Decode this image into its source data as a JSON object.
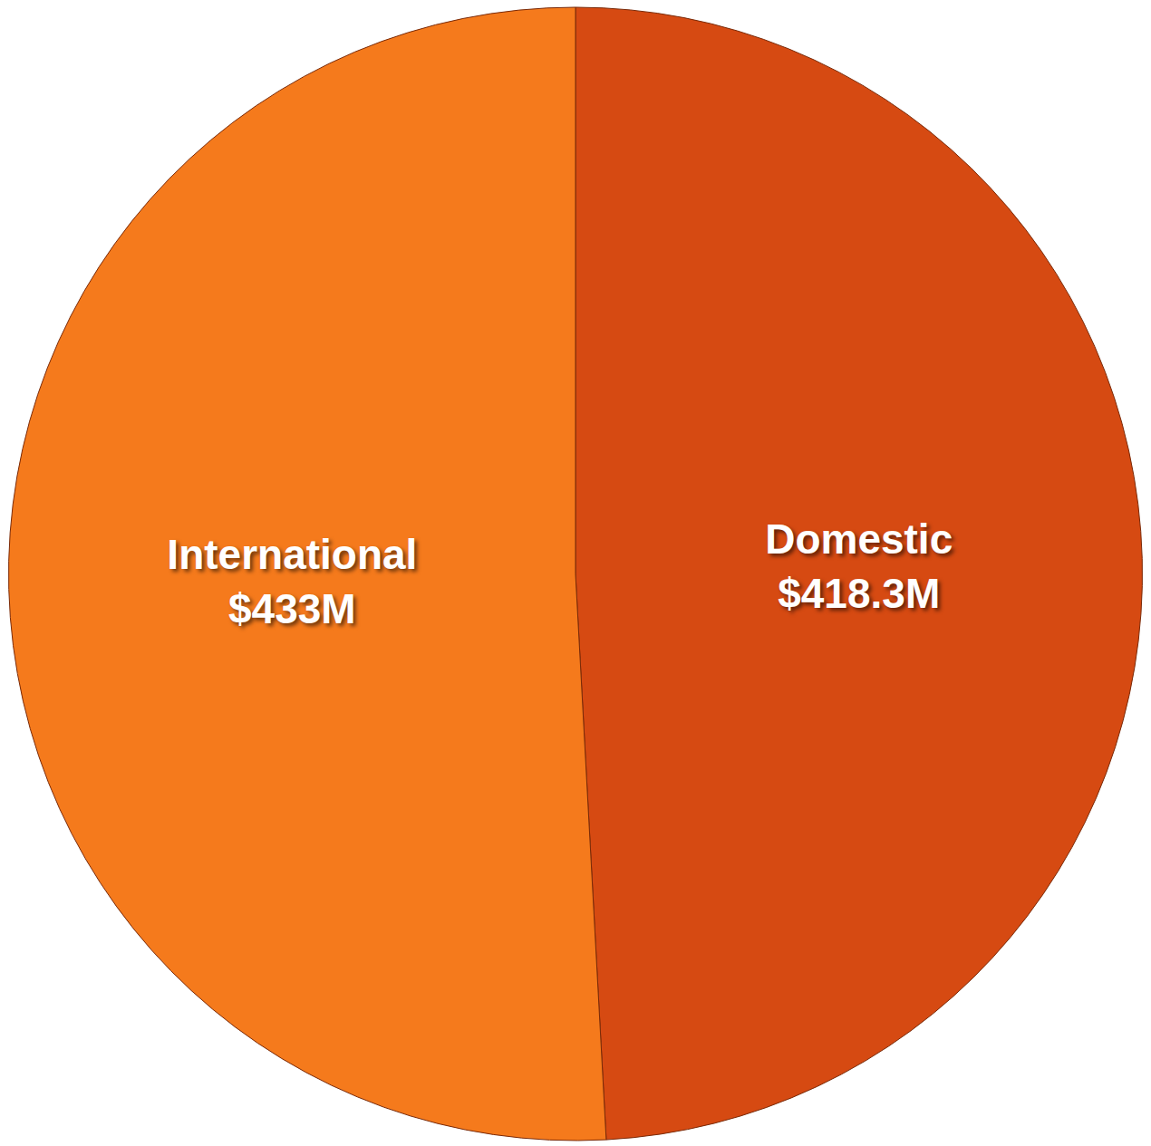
{
  "chart_data": {
    "type": "pie",
    "categories": [
      "Domestic",
      "International"
    ],
    "values": [
      418.3,
      433
    ],
    "value_labels": [
      "$418.3M",
      "$433M"
    ],
    "colors": [
      "#d64a12",
      "#f57a1c"
    ],
    "data_labels": true
  }
}
